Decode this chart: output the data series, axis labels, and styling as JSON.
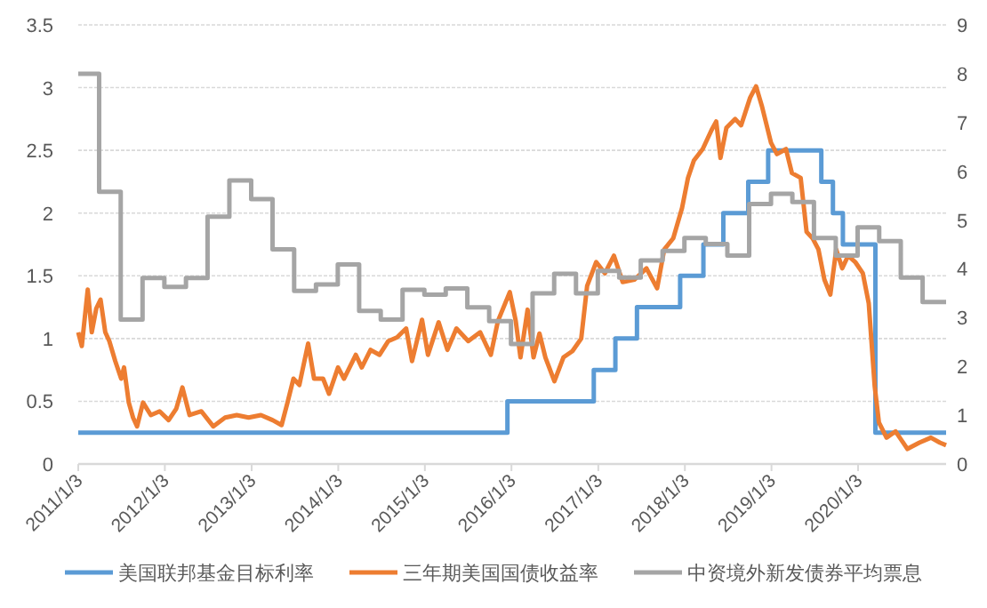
{
  "chart_data": {
    "type": "line",
    "grid": "y",
    "legend": "bottom",
    "xlim": [
      "2011-01-03",
      "2021-01-08"
    ],
    "xticks": [
      {
        "value": "2011-01-03",
        "label": "2011/1/3"
      },
      {
        "value": "2012-01-03",
        "label": "2012/1/3"
      },
      {
        "value": "2013-01-03",
        "label": "2013/1/3"
      },
      {
        "value": "2014-01-03",
        "label": "2014/1/3"
      },
      {
        "value": "2015-01-03",
        "label": "2015/1/3"
      },
      {
        "value": "2016-01-03",
        "label": "2016/1/3"
      },
      {
        "value": "2017-01-03",
        "label": "2017/1/3"
      },
      {
        "value": "2018-01-03",
        "label": "2018/1/3"
      },
      {
        "value": "2019-01-03",
        "label": "2019/1/3"
      },
      {
        "value": "2020-01-03",
        "label": "2020/1/3"
      }
    ],
    "ylim": [
      0,
      3.5
    ],
    "yticks": [
      0,
      0.5,
      1,
      1.5,
      2,
      2.5,
      3,
      3.5
    ],
    "y2lim": [
      0,
      9
    ],
    "y2ticks": [
      0,
      1,
      2,
      3,
      4,
      5,
      6,
      7,
      8,
      9
    ],
    "series": [
      {
        "name": "美国联邦基金目标利率",
        "type": "step",
        "color": "#5b9bd5",
        "x": [
          "2011-01-03",
          "2015-12-17",
          "2016-12-15",
          "2017-03-16",
          "2017-06-15",
          "2017-12-14",
          "2018-03-22",
          "2018-06-14",
          "2018-09-27",
          "2018-12-20",
          "2019-08-01",
          "2019-09-19",
          "2019-10-31",
          "2020-03-16",
          "2021-01-08"
        ],
        "values": [
          0.25,
          0.5,
          0.75,
          1.0,
          1.25,
          1.5,
          1.75,
          2.0,
          2.25,
          2.5,
          2.25,
          2.0,
          1.75,
          0.25,
          0.25
        ]
      },
      {
        "name": "三年期美国国债收益率",
        "color": "#ed7d31",
        "x": [
          "2011-01-03",
          "2011-01-18",
          "2011-02-12",
          "2011-03-01",
          "2011-03-20",
          "2011-04-07",
          "2011-04-27",
          "2011-05-14",
          "2011-06-08",
          "2011-07-03",
          "2011-07-15",
          "2011-08-04",
          "2011-08-22",
          "2011-09-08",
          "2011-10-03",
          "2011-11-05",
          "2011-12-12",
          "2012-01-19",
          "2012-02-20",
          "2012-03-17",
          "2012-04-16",
          "2012-06-05",
          "2012-07-25",
          "2012-09-13",
          "2012-11-01",
          "2012-12-21",
          "2013-02-11",
          "2013-04-01",
          "2013-05-09",
          "2013-06-03",
          "2013-06-28",
          "2013-07-23",
          "2013-08-29",
          "2013-09-23",
          "2013-10-31",
          "2013-11-25",
          "2014-01-02",
          "2014-01-27",
          "2014-03-18",
          "2014-04-12",
          "2014-05-19",
          "2014-06-26",
          "2014-08-02",
          "2014-09-08",
          "2014-10-16",
          "2014-11-10",
          "2014-12-22",
          "2015-01-16",
          "2015-03-02",
          "2015-04-08",
          "2015-05-16",
          "2015-07-05",
          "2015-08-24",
          "2015-10-08",
          "2015-11-07",
          "2015-12-27",
          "2016-01-21",
          "2016-02-10",
          "2016-03-11",
          "2016-04-05",
          "2016-04-30",
          "2016-05-25",
          "2016-07-02",
          "2016-08-09",
          "2016-09-16",
          "2016-10-23",
          "2016-11-17",
          "2016-12-25",
          "2017-01-31",
          "2017-03-10",
          "2017-04-16",
          "2017-06-05",
          "2017-07-25",
          "2017-09-08",
          "2017-10-08",
          "2017-11-15",
          "2017-12-22",
          "2018-01-16",
          "2018-02-10",
          "2018-03-19",
          "2018-04-25",
          "2018-05-15",
          "2018-06-02",
          "2018-06-27",
          "2018-08-03",
          "2018-08-28",
          "2018-10-05",
          "2018-10-30",
          "2018-11-24",
          "2019-01-01",
          "2019-01-26",
          "2019-03-05",
          "2019-03-30",
          "2019-05-06",
          "2019-05-31",
          "2019-06-25",
          "2019-07-20",
          "2019-08-14",
          "2019-09-08",
          "2019-10-03",
          "2019-10-28",
          "2019-11-22",
          "2019-12-22",
          "2020-01-23",
          "2020-02-17",
          "2020-03-13",
          "2020-03-31",
          "2020-05-02",
          "2020-06-09",
          "2020-07-29",
          "2020-09-17",
          "2020-11-05",
          "2020-12-13",
          "2021-01-08"
        ],
        "values": [
          1.05,
          0.94,
          1.39,
          1.05,
          1.24,
          1.31,
          1.05,
          0.98,
          0.82,
          0.68,
          0.77,
          0.49,
          0.37,
          0.3,
          0.49,
          0.39,
          0.42,
          0.35,
          0.44,
          0.61,
          0.39,
          0.42,
          0.3,
          0.37,
          0.39,
          0.37,
          0.39,
          0.35,
          0.31,
          0.49,
          0.68,
          0.63,
          0.96,
          0.68,
          0.68,
          0.56,
          0.77,
          0.68,
          0.87,
          0.77,
          0.91,
          0.87,
          0.98,
          1.01,
          1.08,
          0.82,
          1.15,
          0.87,
          1.13,
          0.91,
          1.08,
          0.98,
          1.05,
          0.87,
          1.14,
          1.37,
          1.14,
          0.85,
          1.23,
          0.85,
          1.04,
          0.85,
          0.66,
          0.85,
          0.9,
          1.0,
          1.42,
          1.61,
          1.52,
          1.66,
          1.45,
          1.47,
          1.56,
          1.4,
          1.71,
          1.8,
          2.04,
          2.28,
          2.42,
          2.51,
          2.66,
          2.73,
          2.44,
          2.68,
          2.75,
          2.7,
          2.92,
          3.01,
          2.85,
          2.56,
          2.47,
          2.51,
          2.32,
          2.28,
          1.85,
          1.8,
          1.71,
          1.47,
          1.35,
          1.71,
          1.56,
          1.66,
          1.61,
          1.52,
          1.28,
          0.62,
          0.33,
          0.21,
          0.26,
          0.12,
          0.17,
          0.21,
          0.17,
          0.15
        ]
      },
      {
        "name": "中资境外新发债券平均票息",
        "type": "step",
        "axis": "y2",
        "color": "#a5a5a5",
        "x": [
          "2011-01-03",
          "2011-04-01",
          "2011-07-01",
          "2011-10-01",
          "2012-01-01",
          "2012-04-01",
          "2012-07-01",
          "2012-10-01",
          "2013-01-01",
          "2013-04-01",
          "2013-07-01",
          "2013-10-01",
          "2014-01-01",
          "2014-04-01",
          "2014-07-01",
          "2014-10-01",
          "2015-01-01",
          "2015-04-01",
          "2015-07-01",
          "2015-10-01",
          "2016-01-01",
          "2016-04-01",
          "2016-07-01",
          "2016-10-01",
          "2017-01-01",
          "2017-04-01",
          "2017-07-01",
          "2017-10-01",
          "2018-01-01",
          "2018-04-01",
          "2018-07-01",
          "2018-10-01",
          "2019-01-01",
          "2019-04-01",
          "2019-07-01",
          "2019-10-01",
          "2020-01-01",
          "2020-04-01",
          "2020-07-01",
          "2020-10-01",
          "2021-01-08"
        ],
        "values": [
          8.0,
          5.58,
          2.96,
          3.81,
          3.63,
          3.81,
          5.07,
          5.81,
          5.43,
          4.4,
          3.55,
          3.68,
          4.09,
          3.14,
          2.96,
          3.57,
          3.47,
          3.6,
          3.21,
          2.93,
          2.46,
          3.5,
          3.9,
          3.5,
          3.96,
          3.82,
          4.17,
          4.37,
          4.63,
          4.51,
          4.27,
          5.33,
          5.54,
          5.37,
          4.63,
          4.27,
          4.85,
          4.57,
          3.82,
          3.32,
          3.32
        ]
      }
    ]
  }
}
